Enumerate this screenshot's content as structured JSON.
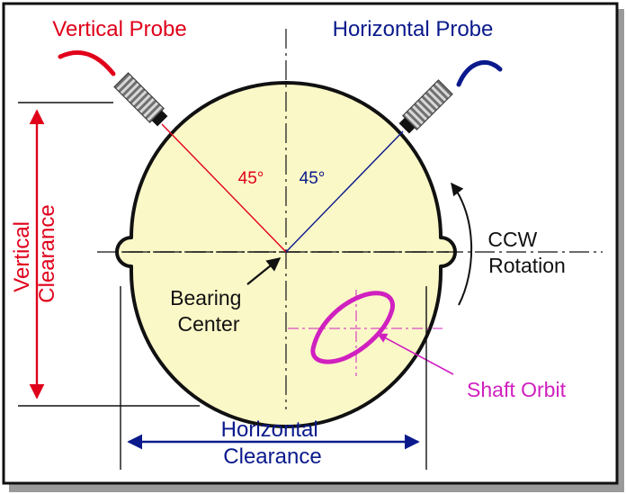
{
  "labels": {
    "vertical_probe": "Vertical Probe",
    "horizontal_probe": "Horizontal Probe",
    "angle_left": "45°",
    "angle_right": "45°",
    "ccw": "CCW",
    "rotation": "Rotation",
    "bearing_center_line1": "Bearing",
    "bearing_center_line2": "Center",
    "shaft_orbit": "Shaft Orbit",
    "vertical_clearance_line1": "Vertical",
    "vertical_clearance_line2": "Clearance",
    "horizontal_clearance_line1": "Horizontal",
    "horizontal_clearance_line2": "Clearance"
  },
  "colors": {
    "vertical": "#e0001a",
    "horizontal": "#0a1a8c",
    "orbit": "#d020c0",
    "bearing_fill": "#fbf8c8",
    "outline": "#111111"
  },
  "icons": {
    "vertical_probe": "proximity-probe-icon",
    "horizontal_probe": "proximity-probe-icon"
  }
}
